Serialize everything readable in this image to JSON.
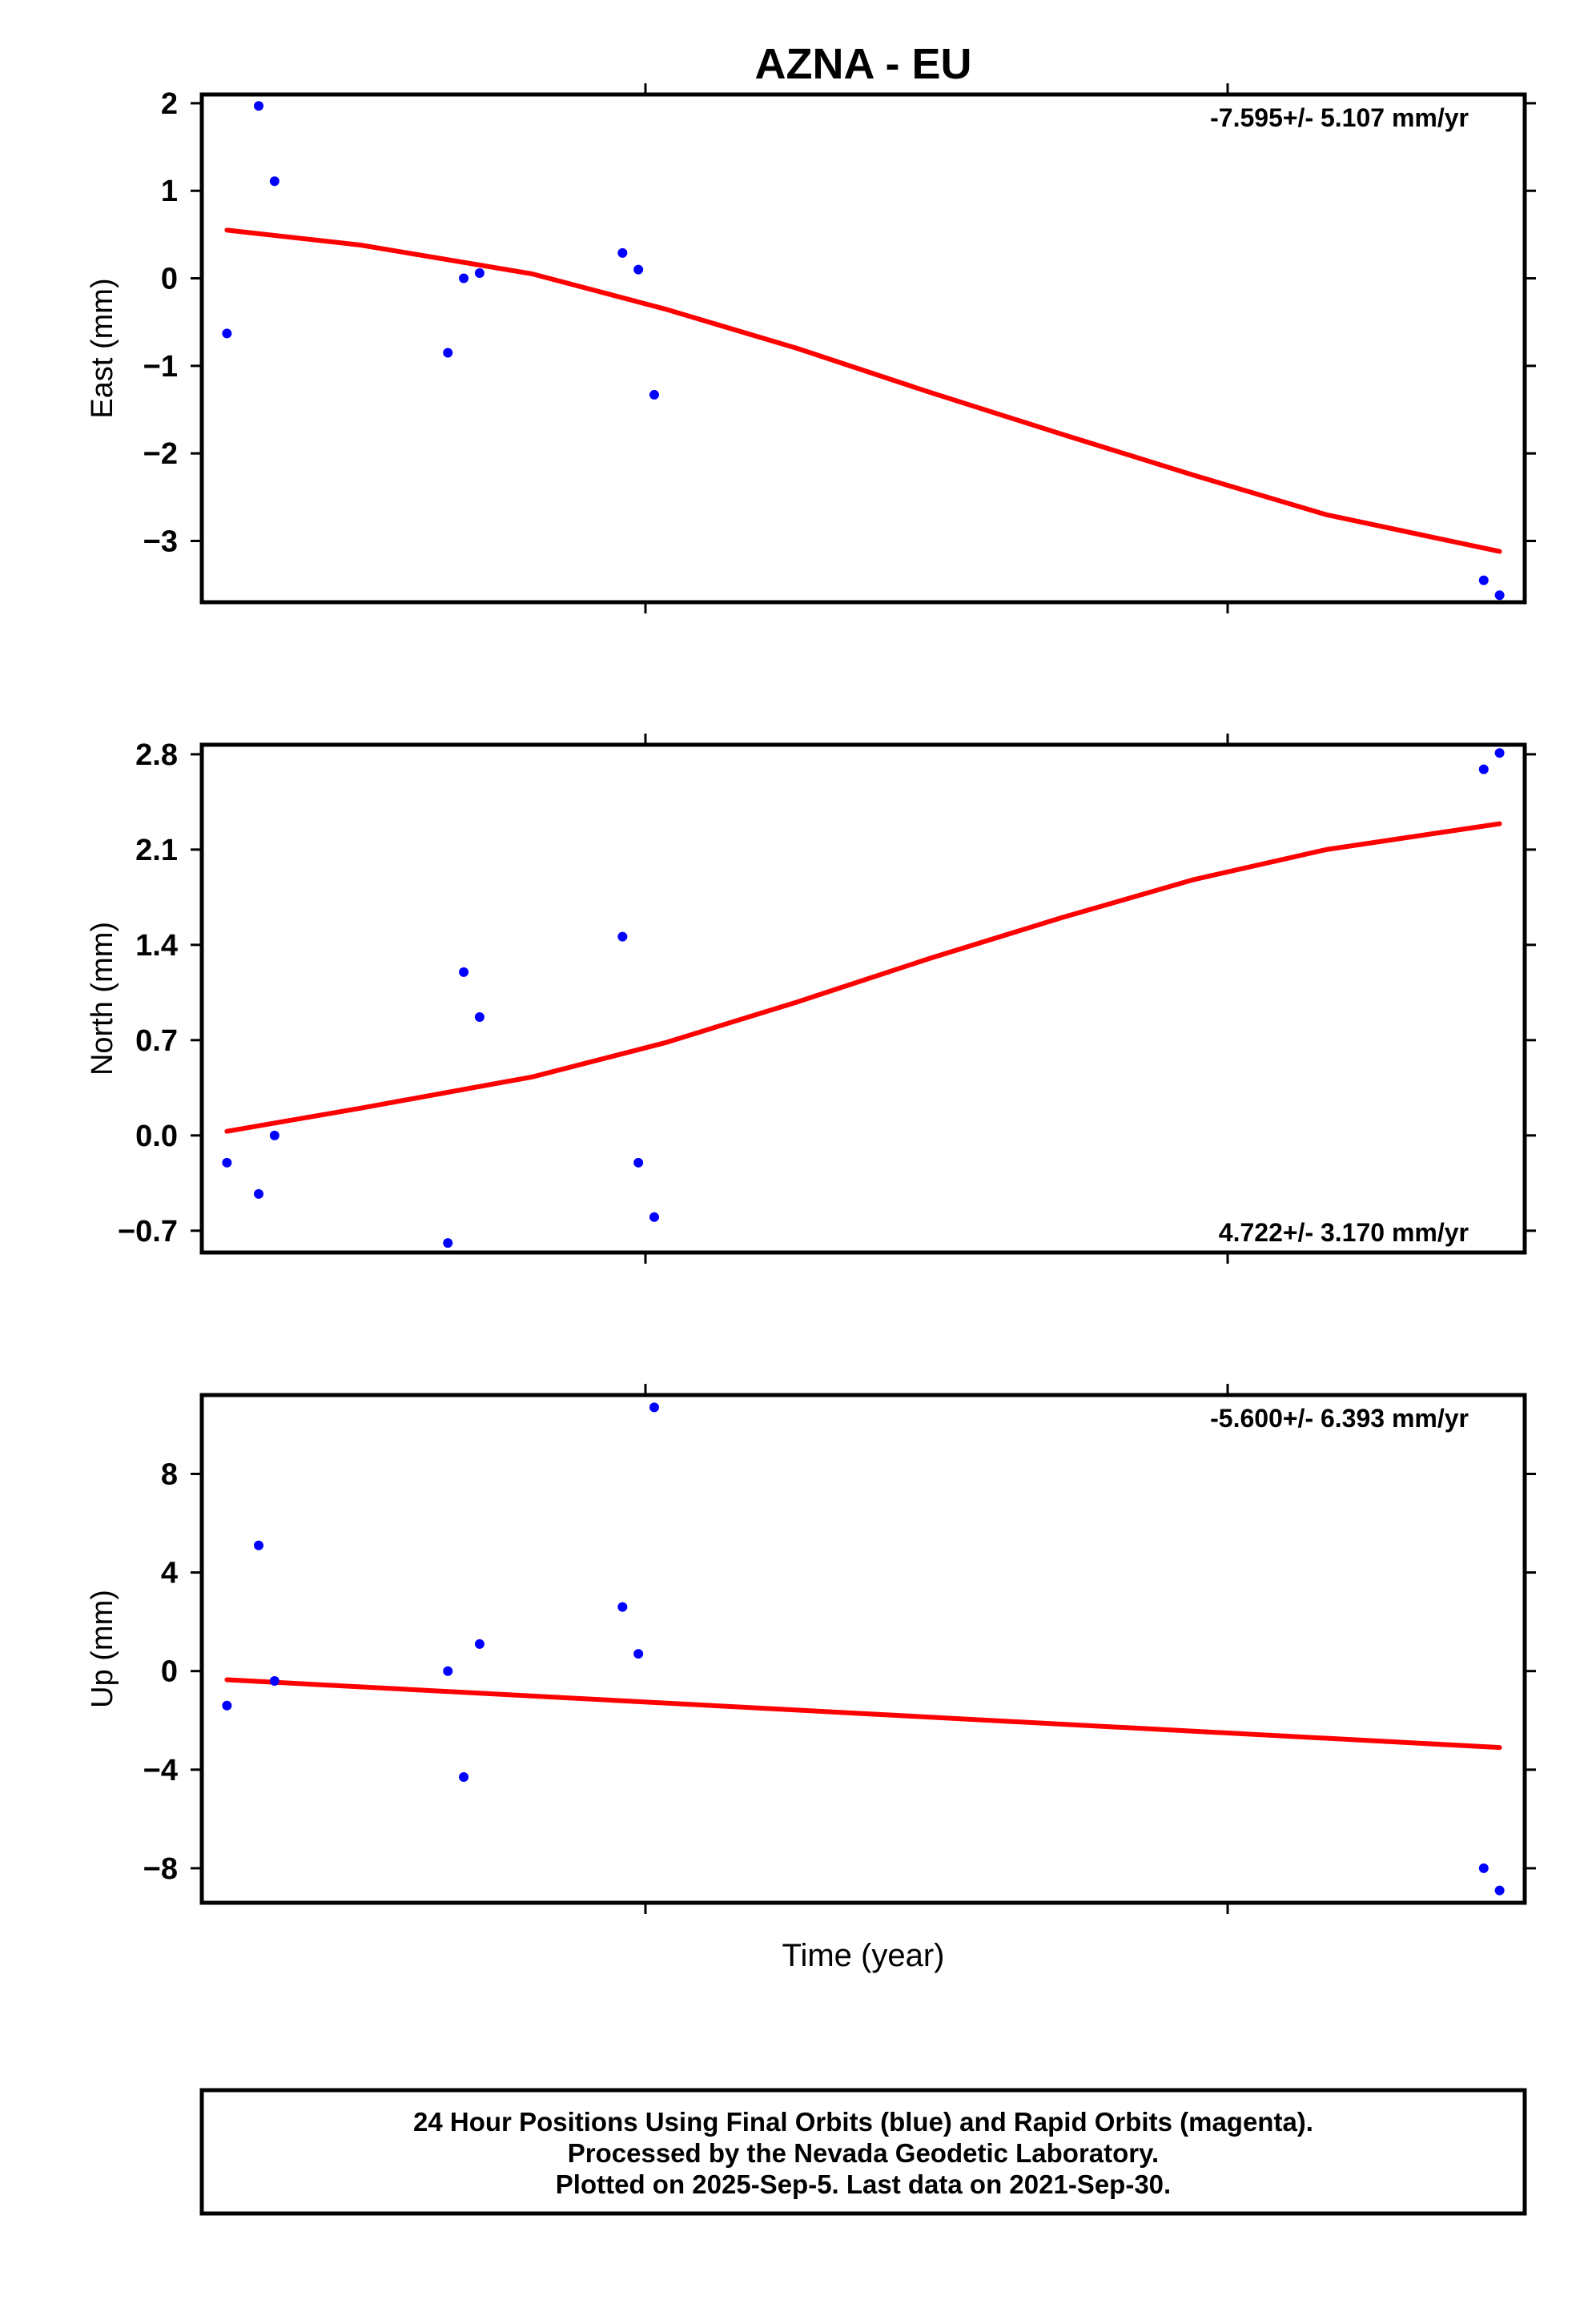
{
  "title": "AZNA - EU",
  "xlabel": "Time (year)",
  "footer": [
    "24 Hour Positions Using Final Orbits (blue) and Rapid Orbits (magenta).",
    "Processed by the Nevada Geodetic Laboratory.",
    "Plotted on 2025-Sep-5. Last data on 2021-Sep-30."
  ],
  "colors": {
    "final_orbits": "#0000ff",
    "rapid_orbits": "#ff00ff",
    "fit_line": "#ff0000"
  },
  "chart_data": [
    {
      "type": "scatter",
      "name": "east",
      "ylabel": "East (mm)",
      "rate_label": "-7.595+/- 5.107 mm/yr",
      "rate_position": "top-right",
      "yticks": [
        2,
        1,
        0,
        -1,
        -2,
        -3
      ],
      "ytick_labels": [
        "2",
        "1",
        "0",
        "−1",
        "−2",
        "−3"
      ],
      "ylim": [
        -3.7,
        2.1
      ],
      "xlim": [
        0,
        100
      ],
      "x": [
        1.9,
        4.3,
        5.5,
        18.6,
        19.8,
        21.0,
        31.8,
        33.0,
        34.2,
        96.9,
        98.1
      ],
      "y": [
        -0.63,
        1.97,
        1.11,
        -0.85,
        0.0,
        0.06,
        0.29,
        0.1,
        -1.33,
        -3.45,
        -3.62
      ],
      "fit": {
        "x": [
          1.9,
          12,
          25,
          35,
          45,
          55,
          65,
          75,
          85,
          98.1
        ],
        "y": [
          0.55,
          0.38,
          0.05,
          -0.35,
          -0.8,
          -1.3,
          -1.78,
          -2.25,
          -2.7,
          -3.12
        ]
      }
    },
    {
      "type": "scatter",
      "name": "north",
      "ylabel": "North (mm)",
      "rate_label": "4.722+/- 3.170 mm/yr",
      "rate_position": "bottom-right",
      "yticks": [
        2.8,
        2.1,
        1.4,
        0.7,
        0.0,
        -0.7
      ],
      "ytick_labels": [
        "2.8",
        "2.1",
        "1.4",
        "0.7",
        "0.0",
        "−0.7"
      ],
      "ylim": [
        -0.86,
        2.87
      ],
      "xlim": [
        0,
        100
      ],
      "x": [
        1.9,
        4.3,
        5.5,
        18.6,
        19.8,
        21.0,
        31.8,
        33.0,
        34.2,
        96.9,
        98.1
      ],
      "y": [
        -0.2,
        -0.43,
        0.0,
        -0.79,
        1.2,
        0.87,
        1.46,
        -0.2,
        -0.6,
        2.69,
        2.81
      ],
      "fit": {
        "x": [
          1.9,
          12,
          25,
          35,
          45,
          55,
          65,
          75,
          85,
          98.1
        ],
        "y": [
          0.03,
          0.2,
          0.43,
          0.68,
          0.98,
          1.3,
          1.6,
          1.88,
          2.1,
          2.29
        ]
      }
    },
    {
      "type": "scatter",
      "name": "up",
      "ylabel": "Up (mm)",
      "rate_label": "-5.600+/- 6.393 mm/yr",
      "rate_position": "top-right",
      "yticks": [
        8,
        4,
        0,
        -4,
        -8
      ],
      "ytick_labels": [
        "8",
        "4",
        "0",
        "−4",
        "−8"
      ],
      "ylim": [
        -9.4,
        11.2
      ],
      "xlim": [
        0,
        100
      ],
      "x": [
        1.9,
        4.3,
        5.5,
        18.6,
        19.8,
        21.0,
        31.8,
        33.0,
        34.2,
        96.9,
        98.1
      ],
      "y": [
        -1.4,
        5.1,
        -0.4,
        0.0,
        -4.3,
        1.1,
        2.6,
        0.7,
        10.7,
        -8.0,
        -8.9
      ],
      "fit": {
        "x": [
          1.9,
          98.1
        ],
        "y": [
          -0.35,
          -3.1
        ]
      }
    }
  ]
}
